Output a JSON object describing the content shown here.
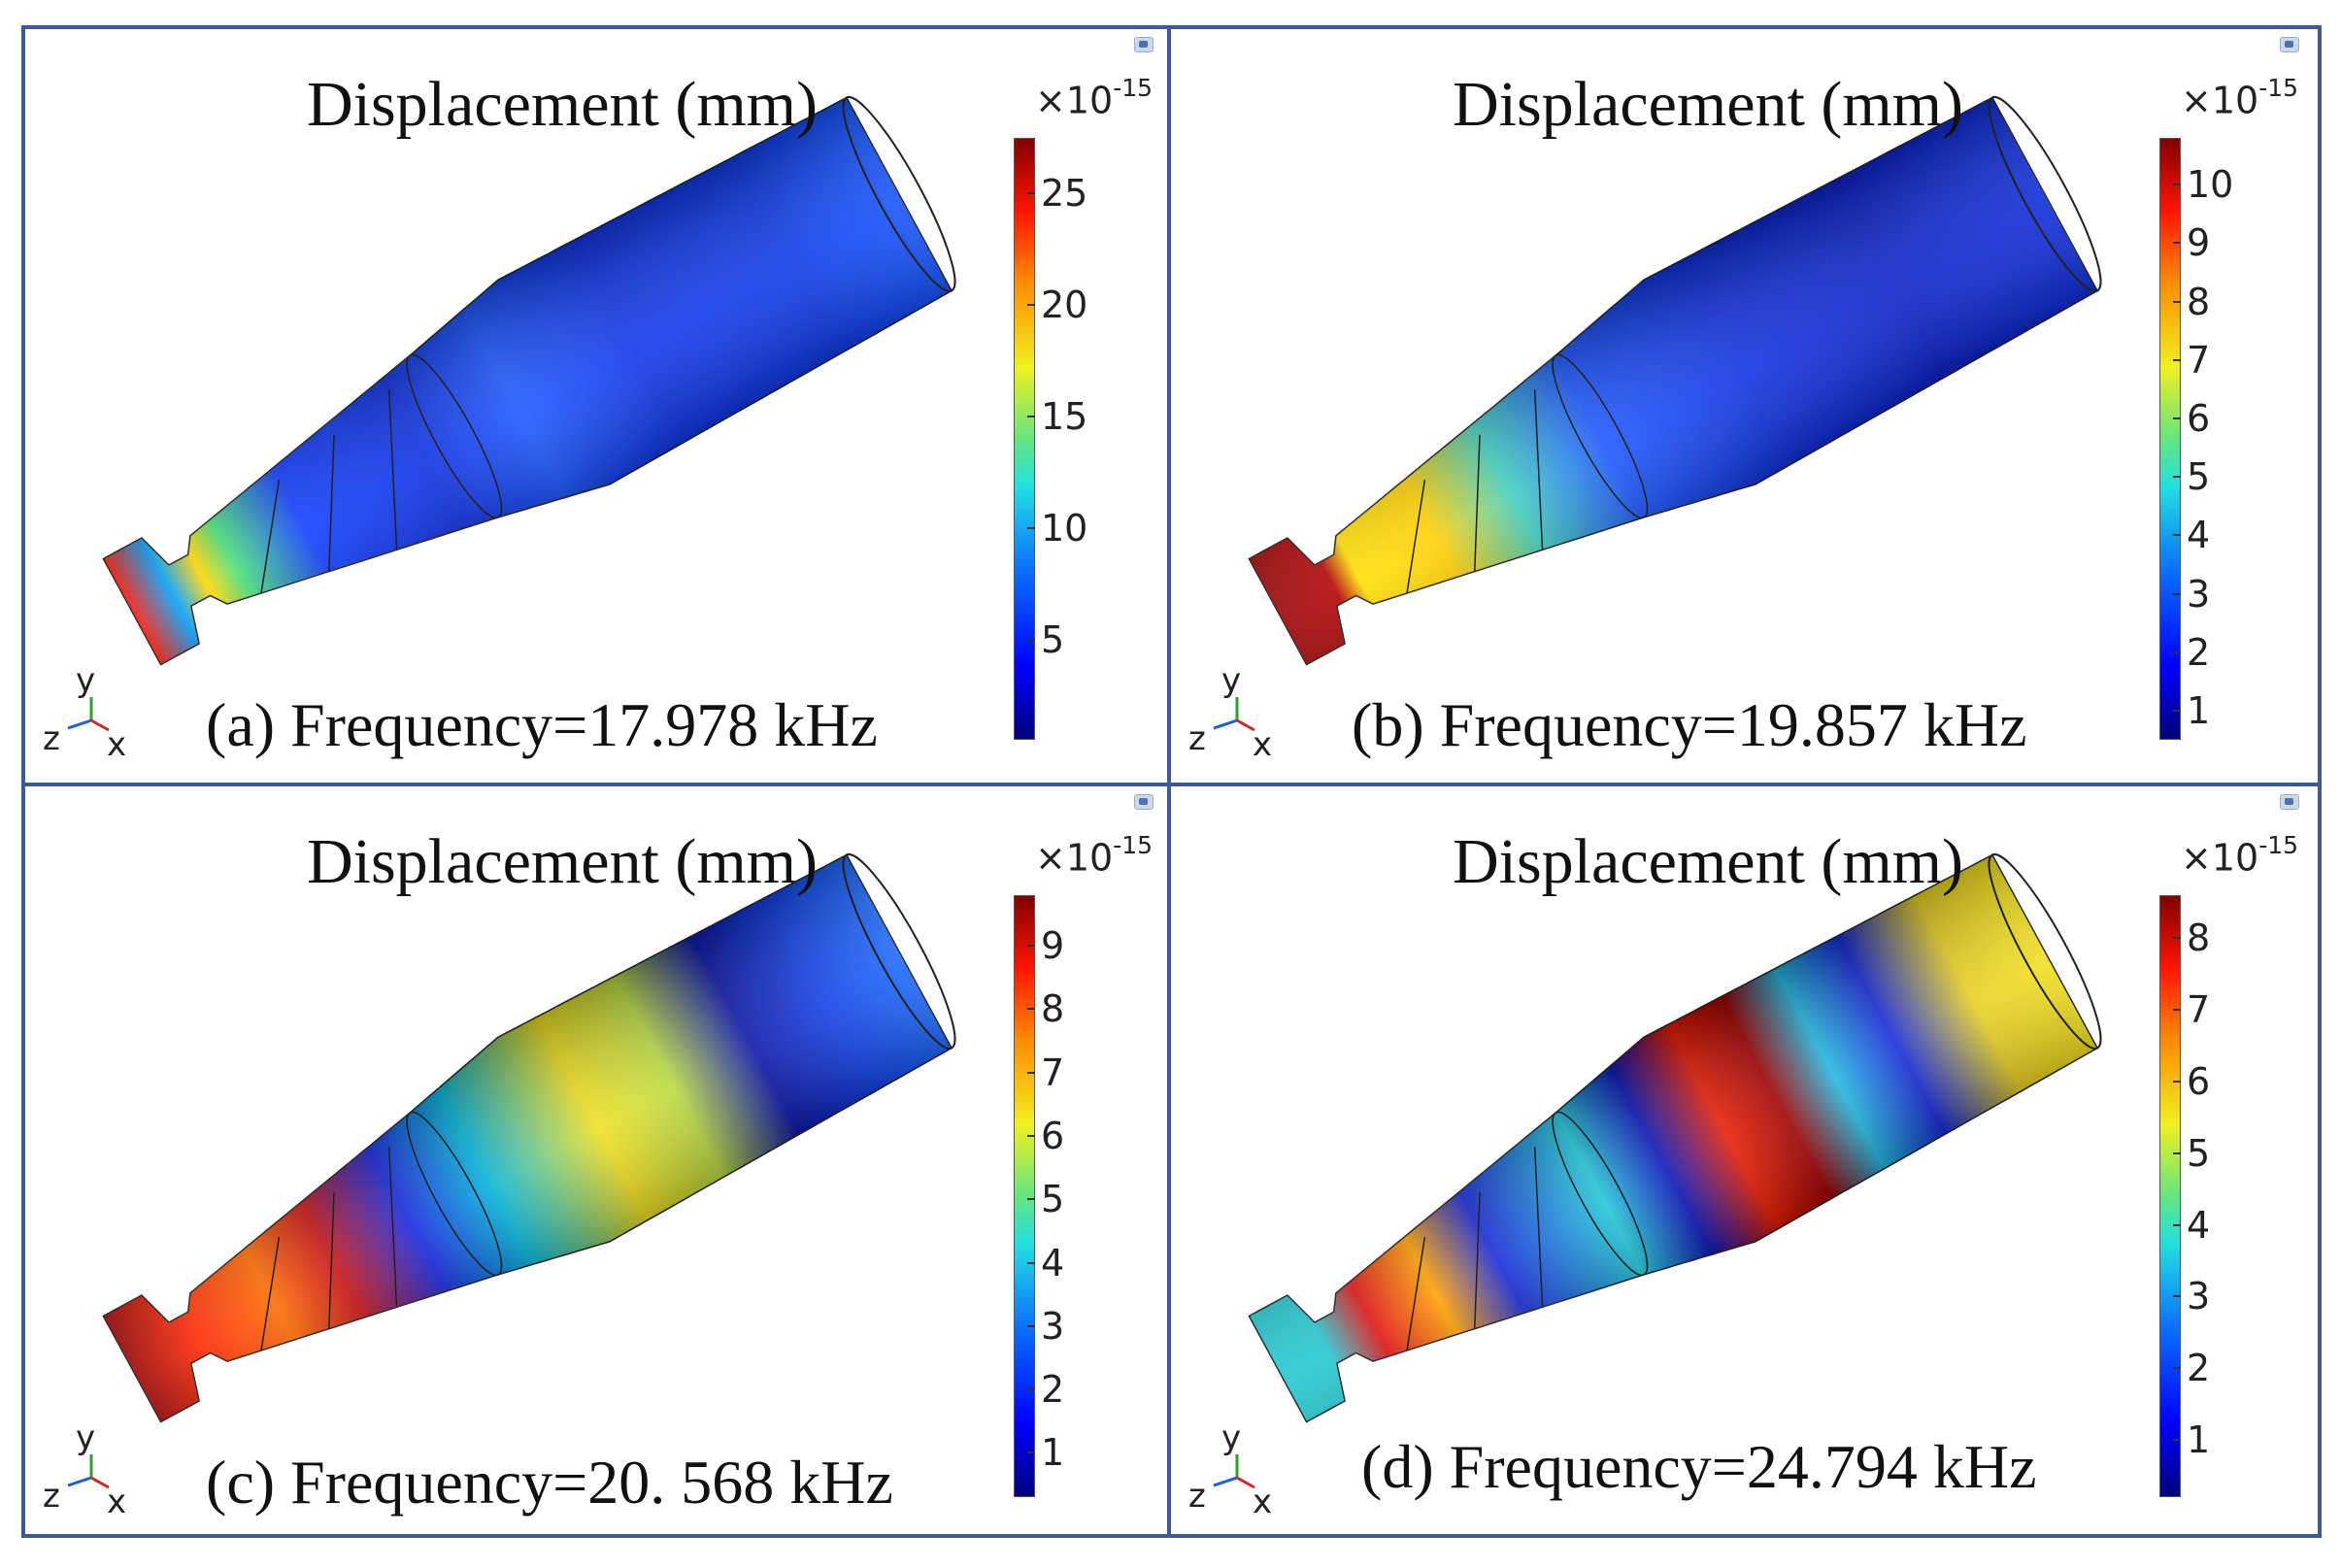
{
  "panels": [
    {
      "id": "a",
      "title": "Displacement (mm)",
      "caption": "(a) Frequency=17.978 kHz",
      "colorbar": {
        "exponent_base": "×10",
        "exponent_power": "-15",
        "ticks": [
          "25",
          "20",
          "15",
          "10",
          "5"
        ],
        "range": [
          0.5,
          27.5
        ]
      },
      "axes": {
        "y": "y",
        "z": "z",
        "x": "x"
      },
      "mode": "a"
    },
    {
      "id": "b",
      "title": "Displacement (mm)",
      "caption": "(b) Frequency=19.857 kHz",
      "colorbar": {
        "exponent_base": "×10",
        "exponent_power": "-15",
        "ticks": [
          "10",
          "9",
          "8",
          "7",
          "6",
          "5",
          "4",
          "3",
          "2",
          "1"
        ],
        "range": [
          0.5,
          10.8
        ]
      },
      "axes": {
        "y": "y",
        "z": "z",
        "x": "x"
      },
      "mode": "b"
    },
    {
      "id": "c",
      "title": "Displacement (mm)",
      "caption": "(c) Frequency=20. 568 kHz",
      "colorbar": {
        "exponent_base": "×10",
        "exponent_power": "-15",
        "ticks": [
          "9",
          "8",
          "7",
          "6",
          "5",
          "4",
          "3",
          "2",
          "1"
        ],
        "range": [
          0.3,
          9.8
        ]
      },
      "axes": {
        "y": "y",
        "z": "z",
        "x": "x"
      },
      "mode": "c"
    },
    {
      "id": "d",
      "title": "Displacement (mm)",
      "caption": "(d) Frequency=24.794 kHz",
      "colorbar": {
        "exponent_base": "×10",
        "exponent_power": "-15",
        "ticks": [
          "8",
          "7",
          "6",
          "5",
          "4",
          "3",
          "2",
          "1"
        ],
        "range": [
          0.2,
          8.6
        ]
      },
      "axes": {
        "y": "y",
        "z": "z",
        "x": "x"
      },
      "mode": "d"
    }
  ],
  "colors": {
    "frame": "#3d5a94",
    "background": "#ffffff"
  }
}
